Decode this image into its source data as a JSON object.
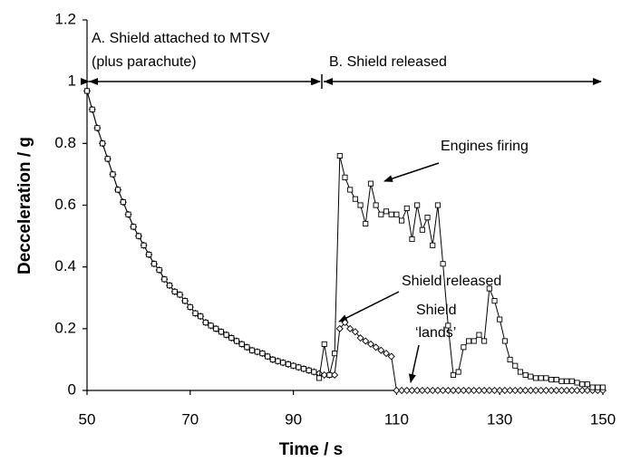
{
  "chart_data": {
    "type": "line",
    "xlabel": "Time / s",
    "ylabel": "Decceleration / g",
    "x": [
      50,
      51,
      52,
      53,
      54,
      55,
      56,
      57,
      58,
      59,
      60,
      61,
      62,
      63,
      64,
      65,
      66,
      67,
      68,
      69,
      70,
      71,
      72,
      73,
      74,
      75,
      76,
      77,
      78,
      79,
      80,
      81,
      82,
      83,
      84,
      85,
      86,
      87,
      88,
      89,
      90,
      91,
      92,
      93,
      94,
      95,
      96,
      97,
      98,
      99,
      100,
      101,
      102,
      103,
      104,
      105,
      106,
      107,
      108,
      109,
      110,
      111,
      112,
      113,
      114,
      115,
      116,
      117,
      118,
      119,
      120,
      121,
      122,
      123,
      124,
      125,
      126,
      127,
      128,
      129,
      130,
      131,
      132,
      133,
      134,
      135,
      136,
      137,
      138,
      139,
      140,
      141,
      142,
      143,
      144,
      145,
      146,
      147,
      148,
      149,
      150
    ],
    "series": [
      {
        "marker": "diamond",
        "color": "#000000",
        "values": [
          0.97,
          0.91,
          0.85,
          0.8,
          0.75,
          0.7,
          0.65,
          0.61,
          0.57,
          0.53,
          0.5,
          0.47,
          0.44,
          0.41,
          0.39,
          0.36,
          0.34,
          0.32,
          0.31,
          0.29,
          0.27,
          0.25,
          0.24,
          0.22,
          0.21,
          0.2,
          0.19,
          0.18,
          0.17,
          0.16,
          0.15,
          0.14,
          0.13,
          0.125,
          0.12,
          0.11,
          0.1,
          0.095,
          0.09,
          0.085,
          0.08,
          0.075,
          0.07,
          0.065,
          0.06,
          0.055,
          0.05,
          0.05,
          0.05,
          0.2,
          0.22,
          0.2,
          0.19,
          0.17,
          0.16,
          0.15,
          0.14,
          0.13,
          0.12,
          0.11,
          0,
          0,
          0,
          0,
          0,
          0,
          0,
          0,
          0,
          0,
          0,
          0,
          0,
          0,
          0,
          0,
          0,
          0,
          0,
          0,
          0,
          0,
          0,
          0,
          0,
          0,
          0,
          0,
          0,
          0,
          0,
          0,
          0,
          0,
          0,
          0,
          0,
          0,
          0,
          0,
          0
        ]
      },
      {
        "marker": "square",
        "color": "#000000",
        "values": [
          0.97,
          0.91,
          0.85,
          0.8,
          0.75,
          0.7,
          0.65,
          0.61,
          0.57,
          0.53,
          0.5,
          0.47,
          0.44,
          0.41,
          0.39,
          0.36,
          0.34,
          0.32,
          0.31,
          0.29,
          0.27,
          0.25,
          0.24,
          0.22,
          0.21,
          0.2,
          0.19,
          0.18,
          0.17,
          0.16,
          0.15,
          0.14,
          0.13,
          0.125,
          0.12,
          0.11,
          0.1,
          0.095,
          0.09,
          0.085,
          0.08,
          0.075,
          0.07,
          0.065,
          0.06,
          0.04,
          0.15,
          0.05,
          0.12,
          0.76,
          0.69,
          0.65,
          0.62,
          0.6,
          0.54,
          0.67,
          0.6,
          0.57,
          0.58,
          0.57,
          0.57,
          0.55,
          0.59,
          0.49,
          0.6,
          0.52,
          0.56,
          0.47,
          0.6,
          0.41,
          0.21,
          0.05,
          0.06,
          0.14,
          0.16,
          0.16,
          0.18,
          0.16,
          0.33,
          0.29,
          0.23,
          0.16,
          0.1,
          0.08,
          0.06,
          0.05,
          0.045,
          0.04,
          0.04,
          0.04,
          0.035,
          0.035,
          0.03,
          0.03,
          0.03,
          0.025,
          0.02,
          0.02,
          0.01,
          0.01,
          0.01
        ]
      }
    ],
    "xlim": [
      50,
      150
    ],
    "xticks": [
      50,
      70,
      90,
      110,
      130,
      150
    ],
    "ylim": [
      0,
      1.2
    ],
    "yticks": [
      0,
      0.2,
      0.4,
      0.6,
      0.8,
      1,
      1.2
    ],
    "annotations": [
      "A. Shield attached to MTSV",
      "(plus parachute)",
      "B. Shield released",
      "Engines firing",
      "Shield released",
      "Shield",
      "‘lands’"
    ]
  }
}
